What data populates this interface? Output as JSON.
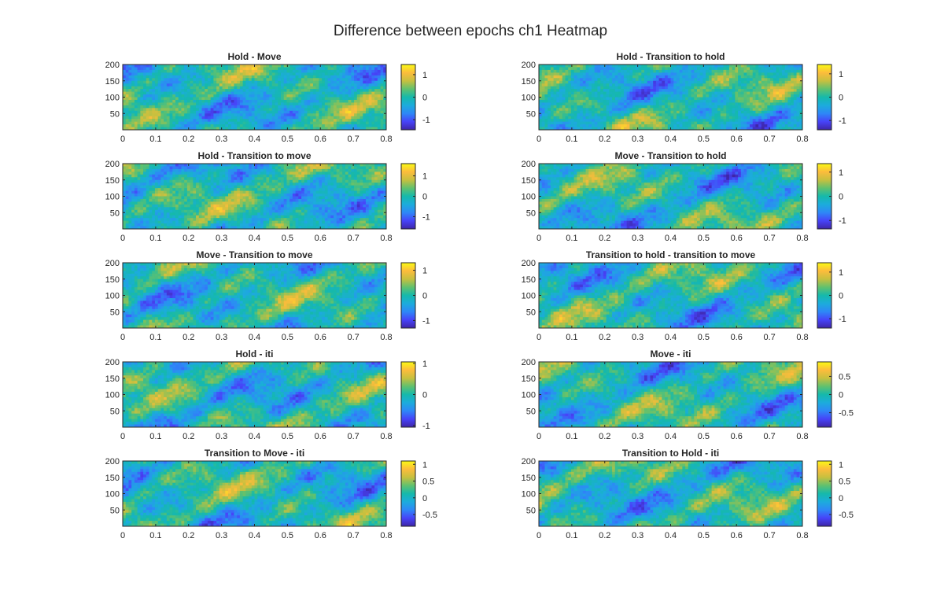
{
  "figure": {
    "title": "Difference between epochs ch1 Heatmap"
  },
  "colormap": [
    "#3e26a8",
    "#4743f8",
    "#2e87f7",
    "#1cacdc",
    "#15b9ab",
    "#61c16e",
    "#c7c03f",
    "#fdbc3c",
    "#f9fa14"
  ],
  "chart_data": [
    {
      "type": "heatmap",
      "title": "Hold - Move",
      "xlim": [
        0,
        0.8
      ],
      "ylim": [
        0,
        200
      ],
      "xticks": [
        0,
        0.1,
        0.2,
        0.3,
        0.4,
        0.5,
        0.6,
        0.7,
        0.8
      ],
      "yticks": [
        50,
        100,
        150,
        200
      ],
      "clim": [
        -1.45,
        1.45
      ],
      "cticks": [
        -1,
        0,
        1
      ]
    },
    {
      "type": "heatmap",
      "title": "Hold - Transition to hold",
      "xlim": [
        0,
        0.8
      ],
      "ylim": [
        0,
        200
      ],
      "xticks": [
        0,
        0.1,
        0.2,
        0.3,
        0.4,
        0.5,
        0.6,
        0.7,
        0.8
      ],
      "yticks": [
        50,
        100,
        150,
        200
      ],
      "clim": [
        -1.4,
        1.4
      ],
      "cticks": [
        -1,
        0,
        1
      ]
    },
    {
      "type": "heatmap",
      "title": "Hold - Transition to move",
      "xlim": [
        0,
        0.8
      ],
      "ylim": [
        0,
        200
      ],
      "xticks": [
        0,
        0.1,
        0.2,
        0.3,
        0.4,
        0.5,
        0.6,
        0.7,
        0.8
      ],
      "yticks": [
        50,
        100,
        150,
        200
      ],
      "clim": [
        -1.6,
        1.6
      ],
      "cticks": [
        -1,
        0,
        1
      ]
    },
    {
      "type": "heatmap",
      "title": "Move - Transition to hold",
      "xlim": [
        0,
        0.8
      ],
      "ylim": [
        0,
        200
      ],
      "xticks": [
        0,
        0.1,
        0.2,
        0.3,
        0.4,
        0.5,
        0.6,
        0.7,
        0.8
      ],
      "yticks": [
        50,
        100,
        150,
        200
      ],
      "clim": [
        -1.35,
        1.35
      ],
      "cticks": [
        -1,
        0,
        1
      ]
    },
    {
      "type": "heatmap",
      "title": "Move - Transition to move",
      "xlim": [
        0,
        0.8
      ],
      "ylim": [
        0,
        200
      ],
      "xticks": [
        0,
        0.1,
        0.2,
        0.3,
        0.4,
        0.5,
        0.6,
        0.7,
        0.8
      ],
      "yticks": [
        50,
        100,
        150,
        200
      ],
      "clim": [
        -1.3,
        1.3
      ],
      "cticks": [
        -1,
        0,
        1
      ]
    },
    {
      "type": "heatmap",
      "title": "Transition to hold - transition to move",
      "xlim": [
        0,
        0.8
      ],
      "ylim": [
        0,
        200
      ],
      "xticks": [
        0,
        0.1,
        0.2,
        0.3,
        0.4,
        0.5,
        0.6,
        0.7,
        0.8
      ],
      "yticks": [
        50,
        100,
        150,
        200
      ],
      "clim": [
        -1.4,
        1.4
      ],
      "cticks": [
        -1,
        0,
        1
      ]
    },
    {
      "type": "heatmap",
      "title": "Hold - iti",
      "xlim": [
        0,
        0.8
      ],
      "ylim": [
        0,
        200
      ],
      "xticks": [
        0,
        0.1,
        0.2,
        0.3,
        0.4,
        0.5,
        0.6,
        0.7,
        0.8
      ],
      "yticks": [
        50,
        100,
        150,
        200
      ],
      "clim": [
        -1.05,
        1.05
      ],
      "cticks": [
        -1,
        0,
        1
      ]
    },
    {
      "type": "heatmap",
      "title": "Move - iti",
      "xlim": [
        0,
        0.8
      ],
      "ylim": [
        0,
        200
      ],
      "xticks": [
        0,
        0.1,
        0.2,
        0.3,
        0.4,
        0.5,
        0.6,
        0.7,
        0.8
      ],
      "yticks": [
        50,
        100,
        150,
        200
      ],
      "clim": [
        -0.9,
        0.9
      ],
      "cticks": [
        -0.5,
        0,
        0.5
      ]
    },
    {
      "type": "heatmap",
      "title": "Transition to Move - iti",
      "xlim": [
        0,
        0.8
      ],
      "ylim": [
        0,
        200
      ],
      "xticks": [
        0,
        0.1,
        0.2,
        0.3,
        0.4,
        0.5,
        0.6,
        0.7,
        0.8
      ],
      "yticks": [
        50,
        100,
        150,
        200
      ],
      "clim": [
        -0.85,
        1.1
      ],
      "cticks": [
        -0.5,
        0,
        0.5,
        1
      ]
    },
    {
      "type": "heatmap",
      "title": "Transition to Hold - iti",
      "xlim": [
        0,
        0.8
      ],
      "ylim": [
        0,
        200
      ],
      "xticks": [
        0,
        0.1,
        0.2,
        0.3,
        0.4,
        0.5,
        0.6,
        0.7,
        0.8
      ],
      "yticks": [
        50,
        100,
        150,
        200
      ],
      "clim": [
        -0.85,
        1.1
      ],
      "cticks": [
        -0.5,
        0,
        0.5,
        1
      ]
    }
  ]
}
